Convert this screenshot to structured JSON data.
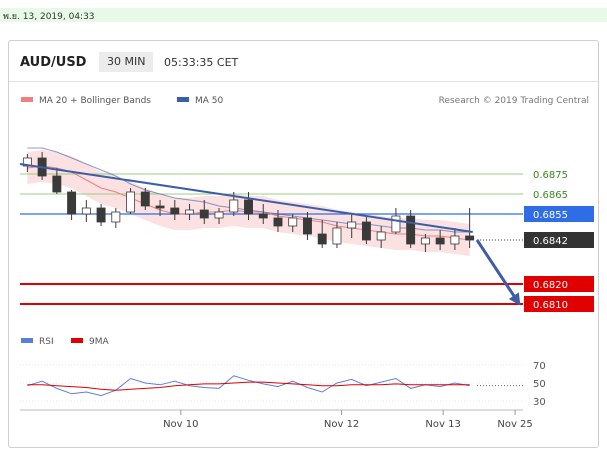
{
  "timestamp": "พ.ย. 13, 2019, 04:33",
  "header": {
    "pair": "AUD/USD",
    "timeframe": "30 MIN",
    "time": "05:33:35 CET"
  },
  "legend": {
    "ma20_label": "MA 20 + Bollinger Bands",
    "ma50_label": "MA 50",
    "credit": "Research © 2019 Trading Central",
    "rsi_label": "RSI",
    "ma9_label": "9MA"
  },
  "colors": {
    "band": "#fadada",
    "ma20": "#f08080",
    "ma50": "#3c5ea8",
    "candle": "#3a3a3a",
    "trend": "#3c5ea8",
    "red_level": "#e00000",
    "blue_level": "#2f6de6",
    "current": "#333333"
  },
  "chart_data": [
    {
      "type": "candlestick",
      "pair": "AUD/USD",
      "timeframe": "30 MIN",
      "x_ticks": [
        "Nov 10",
        "Nov 12",
        "Nov 13",
        "Nov 25"
      ],
      "ylim": [
        0.6803,
        0.6903
      ],
      "price_levels": [
        {
          "label": "0.6875",
          "value": 0.6875,
          "style": "green-line"
        },
        {
          "label": "0.6865",
          "value": 0.6865,
          "style": "green-line"
        },
        {
          "label": "0.6855",
          "value": 0.6855,
          "style": "blue-box"
        },
        {
          "label": "0.6842",
          "value": 0.6842,
          "style": "current-dotted"
        },
        {
          "label": "0.6820",
          "value": 0.682,
          "style": "red-box"
        },
        {
          "label": "0.6810",
          "value": 0.681,
          "style": "red-box"
        }
      ],
      "trendline": {
        "from": [
          0,
          0.688
        ],
        "to": [
          107,
          0.6846
        ]
      },
      "projection": {
        "from": [
          108,
          0.6842
        ],
        "to": [
          118,
          0.681
        ]
      },
      "series": [
        {
          "name": "MA 20 + Bollinger Bands",
          "values": [
            0.6878,
            0.6879,
            0.6878,
            0.6876,
            0.6872,
            0.6868,
            0.6866,
            0.6863,
            0.686,
            0.6857,
            0.6855,
            0.6855,
            0.6856,
            0.6856,
            0.6857,
            0.6856,
            0.6856,
            0.6854,
            0.6853,
            0.6852,
            0.6851,
            0.6849,
            0.6848,
            0.6847,
            0.6846,
            0.6845,
            0.6845,
            0.6844,
            0.6844,
            0.6843,
            0.6842
          ]
        },
        {
          "name": "MA 50",
          "values": [
            0.6888,
            0.6888,
            0.6886,
            0.6883,
            0.688,
            0.6877,
            0.6874,
            0.687,
            0.6867,
            0.6865,
            0.6863,
            0.6862,
            0.6861,
            0.6859,
            0.6858,
            0.6857,
            0.6856,
            0.6855,
            0.6854,
            0.6853,
            0.6852,
            0.6851,
            0.685,
            0.685,
            0.6849,
            0.6848,
            0.6848,
            0.6847,
            0.6847,
            0.6846,
            0.6846
          ]
        }
      ],
      "ohlc": [
        [
          0.6879,
          0.6885,
          0.6876,
          0.6883
        ],
        [
          0.6883,
          0.6886,
          0.6872,
          0.6874
        ],
        [
          0.6874,
          0.6878,
          0.6865,
          0.6866
        ],
        [
          0.6866,
          0.6867,
          0.6852,
          0.6855
        ],
        [
          0.6855,
          0.6862,
          0.6851,
          0.6858
        ],
        [
          0.6858,
          0.686,
          0.6849,
          0.6851
        ],
        [
          0.6851,
          0.6858,
          0.6848,
          0.6856
        ],
        [
          0.6856,
          0.6868,
          0.6855,
          0.6866
        ],
        [
          0.6866,
          0.6868,
          0.6857,
          0.6859
        ],
        [
          0.6859,
          0.6862,
          0.6854,
          0.6858
        ],
        [
          0.6858,
          0.6862,
          0.6852,
          0.6855
        ],
        [
          0.6855,
          0.686,
          0.6852,
          0.6857
        ],
        [
          0.6857,
          0.6862,
          0.685,
          0.6853
        ],
        [
          0.6853,
          0.6858,
          0.685,
          0.6856
        ],
        [
          0.6856,
          0.6866,
          0.6854,
          0.6862
        ],
        [
          0.6862,
          0.6866,
          0.6852,
          0.6855
        ],
        [
          0.6855,
          0.686,
          0.685,
          0.6853
        ],
        [
          0.6853,
          0.6857,
          0.6846,
          0.6849
        ],
        [
          0.6849,
          0.6855,
          0.6846,
          0.6853
        ],
        [
          0.6853,
          0.6856,
          0.6842,
          0.6845
        ],
        [
          0.6845,
          0.6852,
          0.6838,
          0.684
        ],
        [
          0.684,
          0.6851,
          0.6838,
          0.6848
        ],
        [
          0.6848,
          0.6855,
          0.6843,
          0.6851
        ],
        [
          0.6851,
          0.6854,
          0.684,
          0.6842
        ],
        [
          0.6842,
          0.6849,
          0.6838,
          0.6846
        ],
        [
          0.6846,
          0.6858,
          0.6845,
          0.6854
        ],
        [
          0.6854,
          0.6857,
          0.6838,
          0.684
        ],
        [
          0.684,
          0.6845,
          0.6836,
          0.6843
        ],
        [
          0.6843,
          0.6847,
          0.6837,
          0.684
        ],
        [
          0.684,
          0.6848,
          0.6837,
          0.6844
        ],
        [
          0.6844,
          0.6858,
          0.6838,
          0.6842
        ]
      ]
    },
    {
      "type": "line",
      "name": "RSI",
      "x_ticks": [
        "Nov 10",
        "Nov 12",
        "Nov 13",
        "Nov 25"
      ],
      "y_ticks": [
        70,
        50,
        30
      ],
      "ylim": [
        20,
        80
      ],
      "series": [
        {
          "name": "RSI",
          "values": [
            47,
            52,
            44,
            38,
            40,
            36,
            42,
            55,
            50,
            48,
            52,
            47,
            45,
            44,
            58,
            53,
            49,
            46,
            52,
            45,
            40,
            50,
            54,
            47,
            51,
            55,
            44,
            48,
            46,
            50,
            47
          ]
        },
        {
          "name": "9MA",
          "values": [
            48,
            48,
            47,
            46,
            45,
            43,
            42,
            43,
            44,
            45,
            47,
            48,
            49,
            49,
            50,
            51,
            51,
            50,
            49,
            48,
            47,
            47,
            48,
            48,
            48,
            49,
            48,
            48,
            48,
            48,
            48
          ]
        }
      ]
    }
  ]
}
